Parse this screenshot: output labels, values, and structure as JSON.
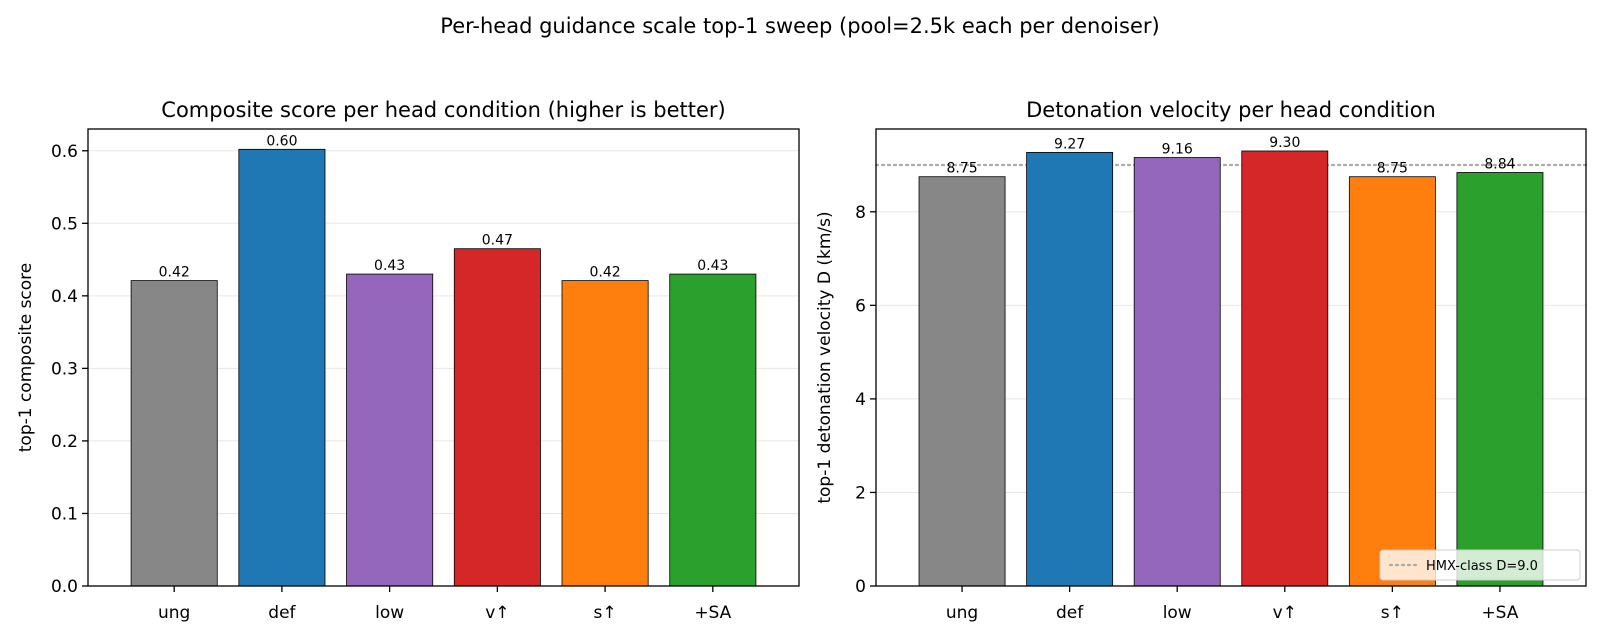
{
  "figure": {
    "suptitle": "Per-head guidance scale top-1 sweep (pool=2.5k each per denoiser)"
  },
  "chart_data": [
    {
      "type": "bar",
      "title": "Composite score per head condition (higher is better)",
      "xlabel": "",
      "ylabel": "top-1 composite score",
      "categories": [
        "ung",
        "def",
        "low",
        "v↑",
        "s↑",
        "+SA"
      ],
      "values": [
        0.421,
        0.602,
        0.43,
        0.465,
        0.421,
        0.43
      ],
      "value_labels": [
        "0.42",
        "0.60",
        "0.43",
        "0.47",
        "0.42",
        "0.43"
      ],
      "colors": [
        "#878787",
        "#1f77b4",
        "#9467bd",
        "#d62728",
        "#ff7f0e",
        "#2ca02c"
      ],
      "ylim": [
        0,
        0.63
      ],
      "yticks": [
        0.0,
        0.1,
        0.2,
        0.3,
        0.4,
        0.5,
        0.6
      ],
      "ytick_labels": [
        "0.0",
        "0.1",
        "0.2",
        "0.3",
        "0.4",
        "0.5",
        "0.6"
      ],
      "grid": "y"
    },
    {
      "type": "bar",
      "title": "Detonation velocity per head condition",
      "xlabel": "",
      "ylabel": "top-1 detonation velocity D (km/s)",
      "categories": [
        "ung",
        "def",
        "low",
        "v↑",
        "s↑",
        "+SA"
      ],
      "values": [
        8.75,
        9.27,
        9.16,
        9.3,
        8.75,
        8.84
      ],
      "value_labels": [
        "8.75",
        "9.27",
        "9.16",
        "9.30",
        "8.75",
        "8.84"
      ],
      "colors": [
        "#878787",
        "#1f77b4",
        "#9467bd",
        "#d62728",
        "#ff7f0e",
        "#2ca02c"
      ],
      "ylim": [
        0,
        9.77
      ],
      "yticks": [
        0,
        2,
        4,
        6,
        8
      ],
      "ytick_labels": [
        "0",
        "2",
        "4",
        "6",
        "8"
      ],
      "grid": "y",
      "reference_line": {
        "value": 9.0,
        "label": "HMX-class D=9.0",
        "color": "#aaaaaa",
        "style": "dotted"
      },
      "legend": {
        "position": "lower-right",
        "entries": [
          "HMX-class D=9.0"
        ]
      }
    }
  ]
}
